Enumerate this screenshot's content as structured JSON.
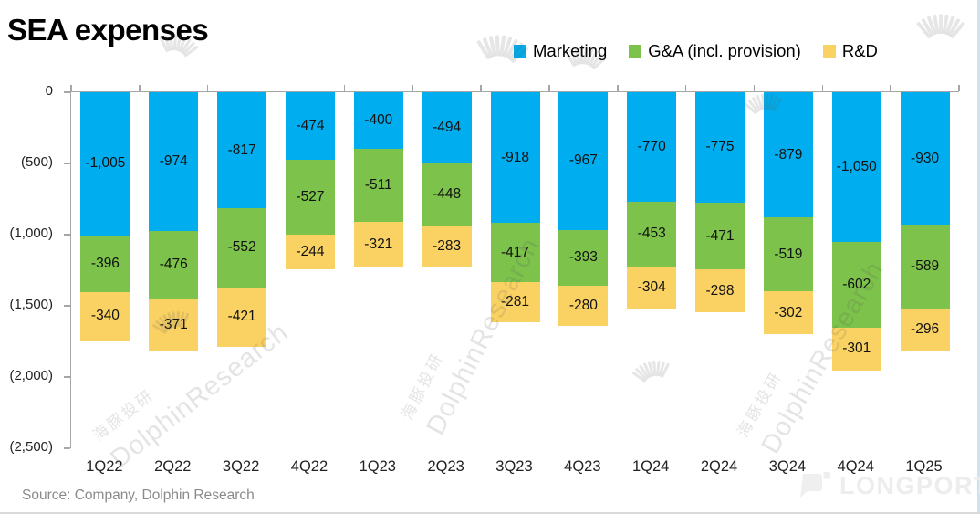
{
  "header": {
    "title": "SEA expenses"
  },
  "chart_data": {
    "type": "bar",
    "stacked": true,
    "orientation": "vertical-negative",
    "title": "SEA expenses",
    "categories": [
      "1Q22",
      "2Q22",
      "3Q22",
      "4Q22",
      "1Q23",
      "2Q23",
      "3Q23",
      "4Q23",
      "1Q24",
      "2Q24",
      "3Q24",
      "4Q24",
      "1Q25"
    ],
    "series": [
      {
        "name": "Marketing",
        "color": "#00AEEF",
        "values": [
          -1005,
          -974,
          -817,
          -474,
          -400,
          -494,
          -918,
          -967,
          -770,
          -775,
          -879,
          -1050,
          -930
        ]
      },
      {
        "name": "G&A (incl. provision)",
        "color": "#7DC24B",
        "values": [
          -396,
          -476,
          -552,
          -527,
          -511,
          -448,
          -417,
          -393,
          -453,
          -471,
          -519,
          -602,
          -589
        ]
      },
      {
        "name": "R&D",
        "color": "#F9D263",
        "values": [
          -340,
          -371,
          -421,
          -244,
          -321,
          -283,
          -281,
          -280,
          -304,
          -298,
          -302,
          -301,
          -296
        ]
      }
    ],
    "ylim": [
      -2500,
      0
    ],
    "ytick_step": 500,
    "ytick_labels": [
      "0",
      "(500)",
      "(1,000)",
      "(1,500)",
      "(2,000)",
      "(2,500)"
    ],
    "grid": false,
    "legend_position": "top-right",
    "data_labels": true
  },
  "source_note": "Source: Company, Dolphin Research",
  "watermark": {
    "brand_cn": "海豚投研",
    "brand_en": "DolphinResearch",
    "logo_text": "LONGPORT"
  },
  "colors": {
    "marketing": "#00AEEF",
    "gna": "#7DC24B",
    "rnd": "#F9D263",
    "axis": "#a6a6a6",
    "source_text": "#8a8a8a"
  }
}
